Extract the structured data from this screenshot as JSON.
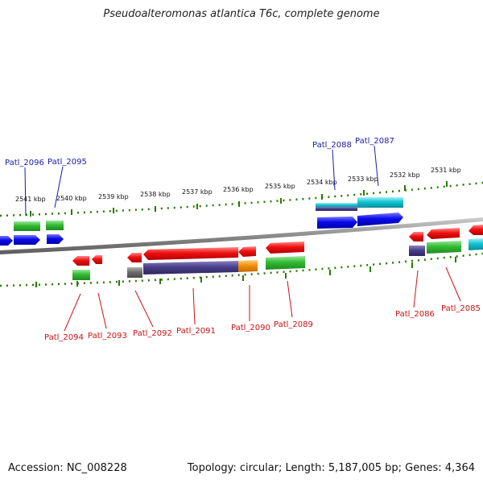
{
  "title": "Pseudoalteromonas atlantica T6c, complete genome",
  "footer": {
    "accession": "Accession: NC_008228",
    "topology": "Topology: circular; Length: 5,187,005 bp; Genes: 4,364"
  },
  "ticks": [
    "2541 kbp",
    "2540 kbp",
    "2539 kbp",
    "2538 kbp",
    "2537 kbp",
    "2536 kbp",
    "2535 kbp",
    "2534 kbp",
    "2533 kbp",
    "2532 kbp",
    "2531 kbp"
  ],
  "top_labels": [
    "Patl_2096",
    "Patl_2095",
    "Patl_2088",
    "Patl_2087"
  ],
  "bottom_labels": [
    "Patl_2094",
    "Patl_2093",
    "Patl_2092",
    "Patl_2091",
    "Patl_2090",
    "Patl_2089",
    "Patl_2086",
    "Patl_2085"
  ],
  "colors": {
    "forward_gene": "#0a0ae8",
    "reverse_gene": "#ee1111",
    "green_feature": "#33bb33",
    "purple_feature": "#4a3f8a",
    "cyan_feature": "#11c4d4",
    "orange_feature": "#f5900a",
    "gray_feature": "#6e6e6e",
    "backbone": "#8a8a8a",
    "tick_green": "#2a7a00",
    "label_blue": "#1a1aa8",
    "label_red": "#cc1111"
  }
}
